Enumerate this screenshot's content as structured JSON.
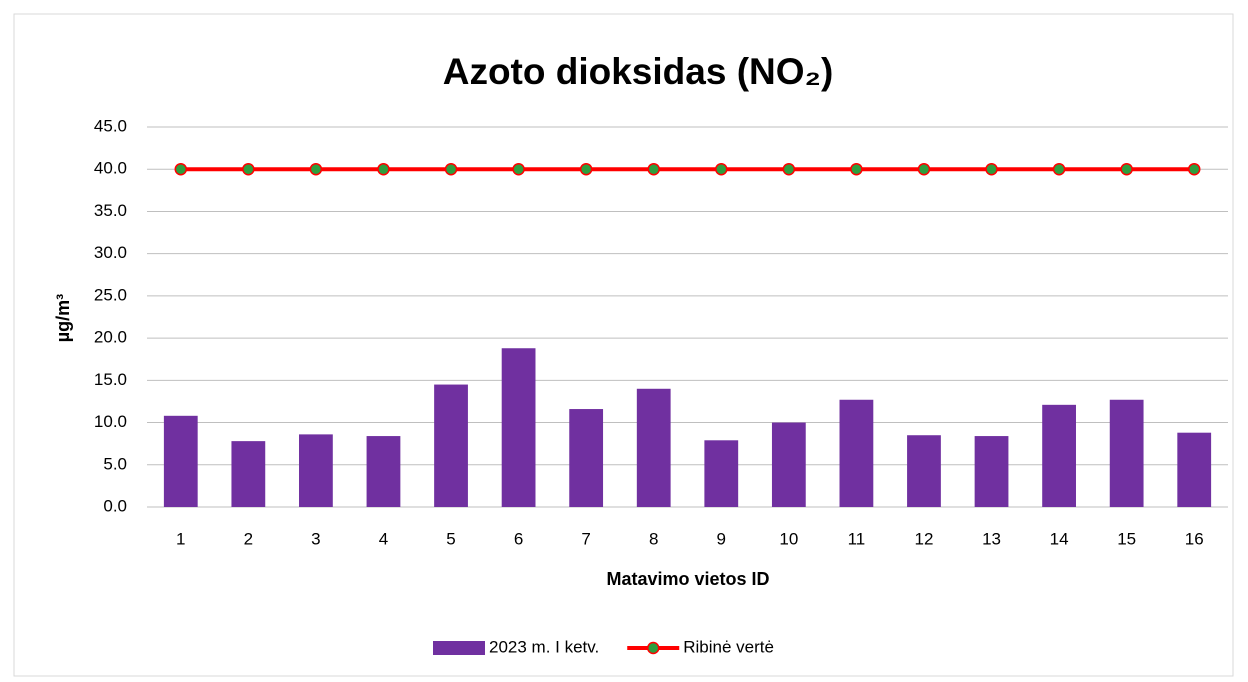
{
  "chart_data": {
    "type": "bar",
    "title": "Azoto dioksidas (NO₂)",
    "x_label": "Matavimo vietos ID",
    "y_label": "µg/m³",
    "categories": [
      "1",
      "2",
      "3",
      "4",
      "5",
      "6",
      "7",
      "8",
      "9",
      "10",
      "11",
      "12",
      "13",
      "14",
      "15",
      "16"
    ],
    "series": [
      {
        "name": "2023 m. I ketv.",
        "type": "bar",
        "color": "#7030a0",
        "values": [
          10.8,
          7.8,
          8.6,
          8.4,
          14.5,
          18.8,
          11.6,
          14.0,
          7.9,
          10.0,
          12.7,
          8.5,
          8.4,
          12.1,
          12.7,
          8.8
        ]
      },
      {
        "name": "Ribinė vertė",
        "type": "line",
        "color": "#ff0000",
        "marker_color": "#2e9e3e",
        "values": [
          40,
          40,
          40,
          40,
          40,
          40,
          40,
          40,
          40,
          40,
          40,
          40,
          40,
          40,
          40,
          40
        ]
      }
    ],
    "ylim": [
      0,
      45
    ],
    "yticks": [
      {
        "value": 0,
        "label": "0.0"
      },
      {
        "value": 5,
        "label": "5.0"
      },
      {
        "value": 10,
        "label": "10.0"
      },
      {
        "value": 15,
        "label": "15.0"
      },
      {
        "value": 20,
        "label": "20.0"
      },
      {
        "value": 25,
        "label": "25.0"
      },
      {
        "value": 30,
        "label": "30.0"
      },
      {
        "value": 35,
        "label": "35.0"
      },
      {
        "value": 40,
        "label": "40.0"
      },
      {
        "value": 45,
        "label": "45.0"
      }
    ],
    "grid": true,
    "legend": "bottom"
  }
}
